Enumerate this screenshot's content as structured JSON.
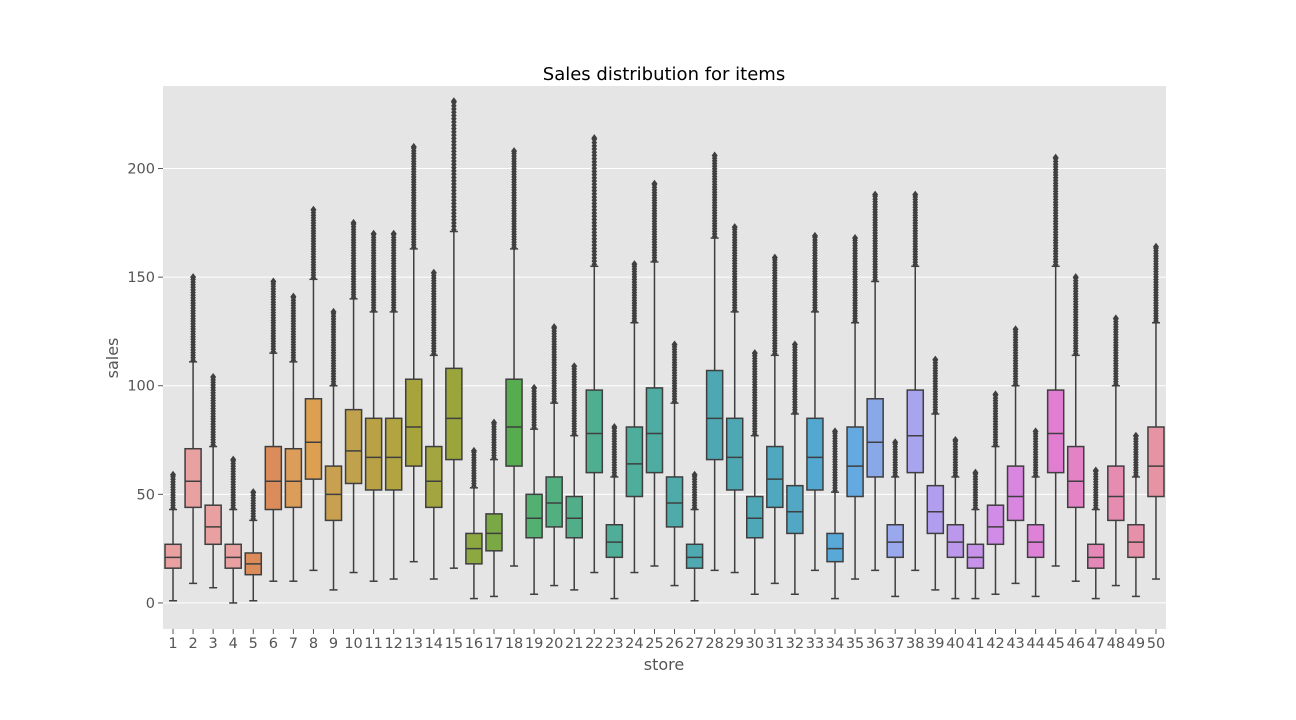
{
  "chart_data": {
    "type": "box",
    "title": "Sales distribution for items",
    "xlabel": "store",
    "ylabel": "sales",
    "ylim": [
      -12,
      238
    ],
    "yticks": [
      0,
      50,
      100,
      150,
      200
    ],
    "grid": true,
    "categories": [
      "1",
      "2",
      "3",
      "4",
      "5",
      "6",
      "7",
      "8",
      "9",
      "10",
      "11",
      "12",
      "13",
      "14",
      "15",
      "16",
      "17",
      "18",
      "19",
      "20",
      "21",
      "22",
      "23",
      "24",
      "25",
      "26",
      "27",
      "28",
      "29",
      "30",
      "31",
      "32",
      "33",
      "34",
      "35",
      "36",
      "37",
      "38",
      "39",
      "40",
      "41",
      "42",
      "43",
      "44",
      "45",
      "46",
      "47",
      "48",
      "49",
      "50"
    ],
    "series": [
      {
        "category": "1",
        "color": "#e8a0a0",
        "whisker_low": 1,
        "q1": 16,
        "median": 21,
        "q3": 27,
        "whisker_high": 43,
        "outlier_max": 59
      },
      {
        "category": "2",
        "color": "#e8a0a0",
        "whisker_low": 9,
        "q1": 44,
        "median": 56,
        "q3": 71,
        "whisker_high": 111,
        "outlier_max": 150
      },
      {
        "category": "3",
        "color": "#e8a0a0",
        "whisker_low": 7,
        "q1": 27,
        "median": 35,
        "q3": 45,
        "whisker_high": 72,
        "outlier_max": 104
      },
      {
        "category": "4",
        "color": "#e8a0a0",
        "whisker_low": 0,
        "q1": 16,
        "median": 21,
        "q3": 27,
        "whisker_high": 43,
        "outlier_max": 66
      },
      {
        "category": "5",
        "color": "#dc8c5a",
        "whisker_low": 1,
        "q1": 13,
        "median": 18,
        "q3": 23,
        "whisker_high": 38,
        "outlier_max": 51
      },
      {
        "category": "6",
        "color": "#dc8c5a",
        "whisker_low": 10,
        "q1": 43,
        "median": 56,
        "q3": 72,
        "whisker_high": 115,
        "outlier_max": 148
      },
      {
        "category": "7",
        "color": "#dc9c5a",
        "whisker_low": 10,
        "q1": 44,
        "median": 56,
        "q3": 71,
        "whisker_high": 111,
        "outlier_max": 141
      },
      {
        "category": "8",
        "color": "#dca050",
        "whisker_low": 15,
        "q1": 57,
        "median": 74,
        "q3": 94,
        "whisker_high": 149,
        "outlier_max": 181
      },
      {
        "category": "9",
        "color": "#c8a050",
        "whisker_low": 6,
        "q1": 38,
        "median": 50,
        "q3": 63,
        "whisker_high": 100,
        "outlier_max": 134
      },
      {
        "category": "10",
        "color": "#c0a24c",
        "whisker_low": 14,
        "q1": 55,
        "median": 70,
        "q3": 89,
        "whisker_high": 140,
        "outlier_max": 175
      },
      {
        "category": "11",
        "color": "#b9a245",
        "whisker_low": 10,
        "q1": 52,
        "median": 67,
        "q3": 85,
        "whisker_high": 134,
        "outlier_max": 170
      },
      {
        "category": "12",
        "color": "#b2a440",
        "whisker_low": 11,
        "q1": 52,
        "median": 67,
        "q3": 85,
        "whisker_high": 134,
        "outlier_max": 170
      },
      {
        "category": "13",
        "color": "#a8a43c",
        "whisker_low": 19,
        "q1": 63,
        "median": 81,
        "q3": 103,
        "whisker_high": 163,
        "outlier_max": 210
      },
      {
        "category": "14",
        "color": "#a3a640",
        "whisker_low": 11,
        "q1": 44,
        "median": 56,
        "q3": 72,
        "whisker_high": 114,
        "outlier_max": 152
      },
      {
        "category": "15",
        "color": "#9aa63c",
        "whisker_low": 16,
        "q1": 66,
        "median": 85,
        "q3": 108,
        "whisker_high": 171,
        "outlier_max": 231
      },
      {
        "category": "16",
        "color": "#8ca840",
        "whisker_low": 2,
        "q1": 18,
        "median": 25,
        "q3": 32,
        "whisker_high": 53,
        "outlier_max": 70
      },
      {
        "category": "17",
        "color": "#7aa845",
        "whisker_low": 3,
        "q1": 24,
        "median": 32,
        "q3": 41,
        "whisker_high": 66,
        "outlier_max": 83
      },
      {
        "category": "18",
        "color": "#58ac50",
        "whisker_low": 17,
        "q1": 63,
        "median": 81,
        "q3": 103,
        "whisker_high": 163,
        "outlier_max": 208
      },
      {
        "category": "19",
        "color": "#52b070",
        "whisker_low": 4,
        "q1": 30,
        "median": 39,
        "q3": 50,
        "whisker_high": 80,
        "outlier_max": 99
      },
      {
        "category": "20",
        "color": "#52b080",
        "whisker_low": 8,
        "q1": 35,
        "median": 46,
        "q3": 58,
        "whisker_high": 92,
        "outlier_max": 127
      },
      {
        "category": "21",
        "color": "#52ae88",
        "whisker_low": 6,
        "q1": 30,
        "median": 39,
        "q3": 49,
        "whisker_high": 77,
        "outlier_max": 109
      },
      {
        "category": "22",
        "color": "#50ae90",
        "whisker_low": 14,
        "q1": 60,
        "median": 78,
        "q3": 98,
        "whisker_high": 155,
        "outlier_max": 214
      },
      {
        "category": "23",
        "color": "#50ae98",
        "whisker_low": 2,
        "q1": 21,
        "median": 28,
        "q3": 36,
        "whisker_high": 58,
        "outlier_max": 81
      },
      {
        "category": "24",
        "color": "#4fad9c",
        "whisker_low": 14,
        "q1": 49,
        "median": 64,
        "q3": 81,
        "whisker_high": 129,
        "outlier_max": 156
      },
      {
        "category": "25",
        "color": "#4eaca2",
        "whisker_low": 17,
        "q1": 60,
        "median": 78,
        "q3": 99,
        "whisker_high": 157,
        "outlier_max": 193
      },
      {
        "category": "26",
        "color": "#4eabaa",
        "whisker_low": 8,
        "q1": 35,
        "median": 46,
        "q3": 58,
        "whisker_high": 92,
        "outlier_max": 119
      },
      {
        "category": "27",
        "color": "#4eaab0",
        "whisker_low": 1,
        "q1": 16,
        "median": 21,
        "q3": 27,
        "whisker_high": 43,
        "outlier_max": 59
      },
      {
        "category": "28",
        "color": "#4ea8b4",
        "whisker_low": 15,
        "q1": 66,
        "median": 85,
        "q3": 107,
        "whisker_high": 168,
        "outlier_max": 206
      },
      {
        "category": "29",
        "color": "#4ea8b4",
        "whisker_low": 14,
        "q1": 52,
        "median": 67,
        "q3": 85,
        "whisker_high": 134,
        "outlier_max": 173
      },
      {
        "category": "30",
        "color": "#4ea8b8",
        "whisker_low": 4,
        "q1": 30,
        "median": 39,
        "q3": 49,
        "whisker_high": 77,
        "outlier_max": 115
      },
      {
        "category": "31",
        "color": "#50a8c0",
        "whisker_low": 9,
        "q1": 44,
        "median": 57,
        "q3": 72,
        "whisker_high": 114,
        "outlier_max": 159
      },
      {
        "category": "32",
        "color": "#52a8c4",
        "whisker_low": 4,
        "q1": 32,
        "median": 42,
        "q3": 54,
        "whisker_high": 87,
        "outlier_max": 119
      },
      {
        "category": "33",
        "color": "#52a8d0",
        "whisker_low": 15,
        "q1": 52,
        "median": 67,
        "q3": 85,
        "whisker_high": 134,
        "outlier_max": 169
      },
      {
        "category": "34",
        "color": "#58a8d8",
        "whisker_low": 2,
        "q1": 19,
        "median": 25,
        "q3": 32,
        "whisker_high": 51,
        "outlier_max": 79
      },
      {
        "category": "35",
        "color": "#64aae0",
        "whisker_low": 11,
        "q1": 49,
        "median": 63,
        "q3": 81,
        "whisker_high": 129,
        "outlier_max": 168
      },
      {
        "category": "36",
        "color": "#88a8e8",
        "whisker_low": 15,
        "q1": 58,
        "median": 74,
        "q3": 94,
        "whisker_high": 148,
        "outlier_max": 188
      },
      {
        "category": "37",
        "color": "#9aa8ee",
        "whisker_low": 3,
        "q1": 21,
        "median": 28,
        "q3": 36,
        "whisker_high": 58,
        "outlier_max": 74
      },
      {
        "category": "38",
        "color": "#a8a4ee",
        "whisker_low": 15,
        "q1": 60,
        "median": 77,
        "q3": 98,
        "whisker_high": 155,
        "outlier_max": 188
      },
      {
        "category": "39",
        "color": "#b29eee",
        "whisker_low": 6,
        "q1": 32,
        "median": 42,
        "q3": 54,
        "whisker_high": 87,
        "outlier_max": 112
      },
      {
        "category": "40",
        "color": "#bc98ec",
        "whisker_low": 2,
        "q1": 21,
        "median": 28,
        "q3": 36,
        "whisker_high": 58,
        "outlier_max": 75
      },
      {
        "category": "41",
        "color": "#c692ea",
        "whisker_low": 2,
        "q1": 16,
        "median": 21,
        "q3": 27,
        "whisker_high": 43,
        "outlier_max": 60
      },
      {
        "category": "42",
        "color": "#d08ce6",
        "whisker_low": 4,
        "q1": 27,
        "median": 35,
        "q3": 45,
        "whisker_high": 72,
        "outlier_max": 96
      },
      {
        "category": "43",
        "color": "#d886e0",
        "whisker_low": 9,
        "q1": 38,
        "median": 49,
        "q3": 63,
        "whisker_high": 100,
        "outlier_max": 126
      },
      {
        "category": "44",
        "color": "#de82d8",
        "whisker_low": 3,
        "q1": 21,
        "median": 28,
        "q3": 36,
        "whisker_high": 58,
        "outlier_max": 79
      },
      {
        "category": "45",
        "color": "#e27ed2",
        "whisker_low": 17,
        "q1": 60,
        "median": 78,
        "q3": 98,
        "whisker_high": 155,
        "outlier_max": 205
      },
      {
        "category": "46",
        "color": "#e482c6",
        "whisker_low": 10,
        "q1": 44,
        "median": 56,
        "q3": 72,
        "whisker_high": 114,
        "outlier_max": 150
      },
      {
        "category": "47",
        "color": "#e488b8",
        "whisker_low": 2,
        "q1": 16,
        "median": 21,
        "q3": 27,
        "whisker_high": 43,
        "outlier_max": 61
      },
      {
        "category": "48",
        "color": "#e68cb0",
        "whisker_low": 8,
        "q1": 38,
        "median": 49,
        "q3": 63,
        "whisker_high": 100,
        "outlier_max": 131
      },
      {
        "category": "49",
        "color": "#e690aa",
        "whisker_low": 3,
        "q1": 21,
        "median": 28,
        "q3": 36,
        "whisker_high": 58,
        "outlier_max": 77
      },
      {
        "category": "50",
        "color": "#e694a4",
        "whisker_low": 11,
        "q1": 49,
        "median": 63,
        "q3": 81,
        "whisker_high": 129,
        "outlier_max": 164
      }
    ]
  }
}
